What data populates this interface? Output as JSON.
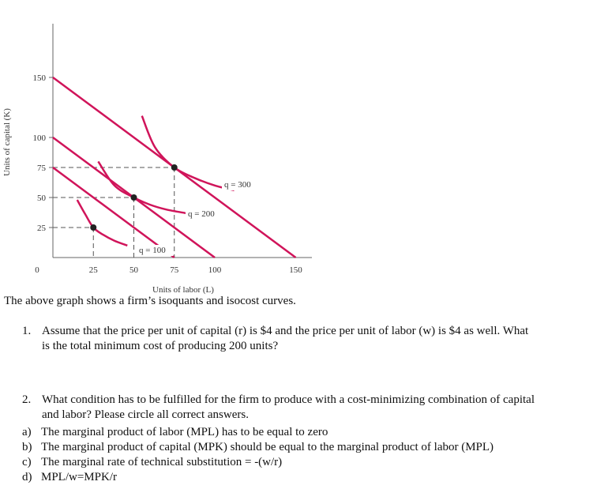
{
  "chart_data": {
    "type": "line",
    "ylabel": "Units of capital (K)",
    "xlabel": "Units of labor (L)",
    "x_ticks": [
      25,
      50,
      75,
      100,
      150
    ],
    "y_ticks": [
      150,
      100,
      75,
      50,
      25
    ],
    "origin_label": "0",
    "xlim": [
      0,
      150
    ],
    "ylim": [
      0,
      175
    ],
    "isocost_lines": [
      {
        "x": [
          0,
          75
        ],
        "y": [
          75,
          0
        ]
      },
      {
        "x": [
          0,
          100
        ],
        "y": [
          100,
          0
        ]
      },
      {
        "x": [
          0,
          150
        ],
        "y": [
          150,
          0
        ]
      }
    ],
    "isoquants": [
      {
        "name": "q = 100",
        "x": [
          15,
          20,
          25,
          31,
          38,
          46
        ],
        "y": [
          48,
          36,
          25,
          19,
          14,
          10
        ]
      },
      {
        "name": "q = 200",
        "x": [
          28,
          38,
          50,
          60,
          70,
          82
        ],
        "y": [
          80,
          60,
          50,
          44,
          40,
          37
        ]
      },
      {
        "name": "q = 300",
        "x": [
          55,
          63,
          75,
          88,
          100,
          112
        ],
        "y": [
          118,
          92,
          75,
          66,
          60,
          56
        ]
      }
    ],
    "tangency_points": [
      {
        "x": 25,
        "y": 25
      },
      {
        "x": 50,
        "y": 50
      },
      {
        "x": 75,
        "y": 75
      }
    ],
    "colors": {
      "curve": "#d0145a",
      "axis": "#666666",
      "dash": "#555555",
      "point": "#222222"
    }
  },
  "caption": "The above graph shows a firm’s isoquants and isocost curves.",
  "questions": [
    {
      "number": "1.",
      "lines": [
        "Assume that the price per unit of capital (r) is $4 and the price per unit of labor (w) is $4 as well. What",
        "is the total minimum cost of producing 200 units?"
      ]
    },
    {
      "number": "2.",
      "lines": [
        "What condition has to be fulfilled for the firm to produce with a cost-minimizing combination of capital",
        "and labor? Please circle all correct answers."
      ],
      "options": [
        {
          "letter": "a)",
          "text": "The marginal product of labor (MPL) has to be equal to zero"
        },
        {
          "letter": "b)",
          "text": "The marginal product of capital (MPK) should be equal to the marginal product of labor (MPL)"
        },
        {
          "letter": "c)",
          "text": "The marginal rate of technical substitution = -(w/r)"
        },
        {
          "letter": "d)",
          "text": "MPL/w=MPK/r"
        }
      ]
    }
  ]
}
